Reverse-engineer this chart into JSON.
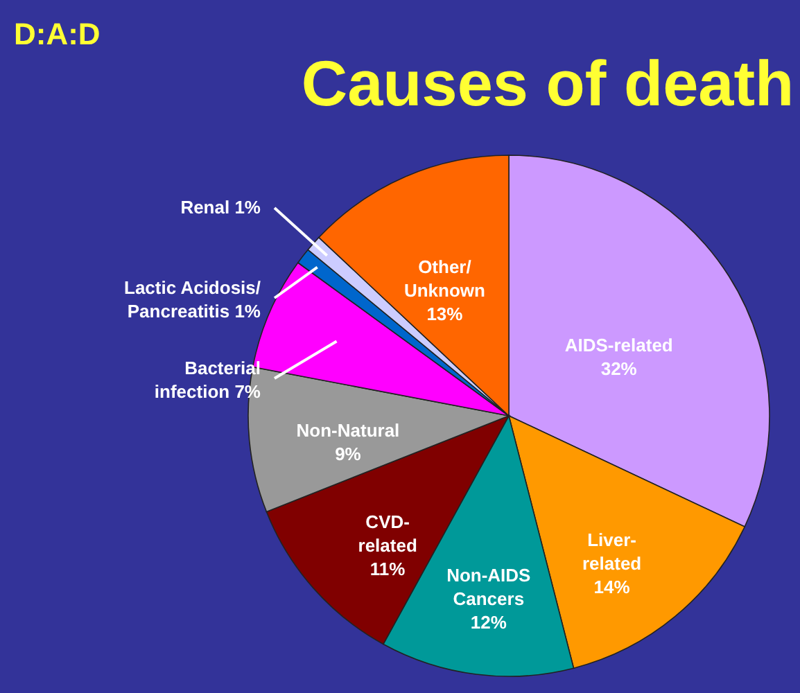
{
  "chart_data": {
    "type": "pie",
    "title": "Causes of death",
    "annotations": [
      "D:A:D"
    ],
    "categories": [
      "AIDS-related",
      "Liver-\nrelated",
      "Non-AIDS\nCancers",
      "CVD-\nrelated",
      "Non-Natural",
      "Bacterial\ninfection",
      "Lactic Acidosis/\nPancreatitis",
      "Renal",
      "Other/\nUnknown"
    ],
    "values": [
      32,
      14,
      12,
      11,
      9,
      7,
      1,
      1,
      13
    ],
    "value_labels": [
      "32%",
      "14%",
      "12%",
      "11%",
      "9%",
      "7%",
      "1%",
      "1%",
      "13%"
    ],
    "colors": [
      "#cc99ff",
      "#ff9900",
      "#009999",
      "#800000",
      "#999999",
      "#ff00ff",
      "#0066cc",
      "#ccccff",
      "#ff6600"
    ]
  }
}
